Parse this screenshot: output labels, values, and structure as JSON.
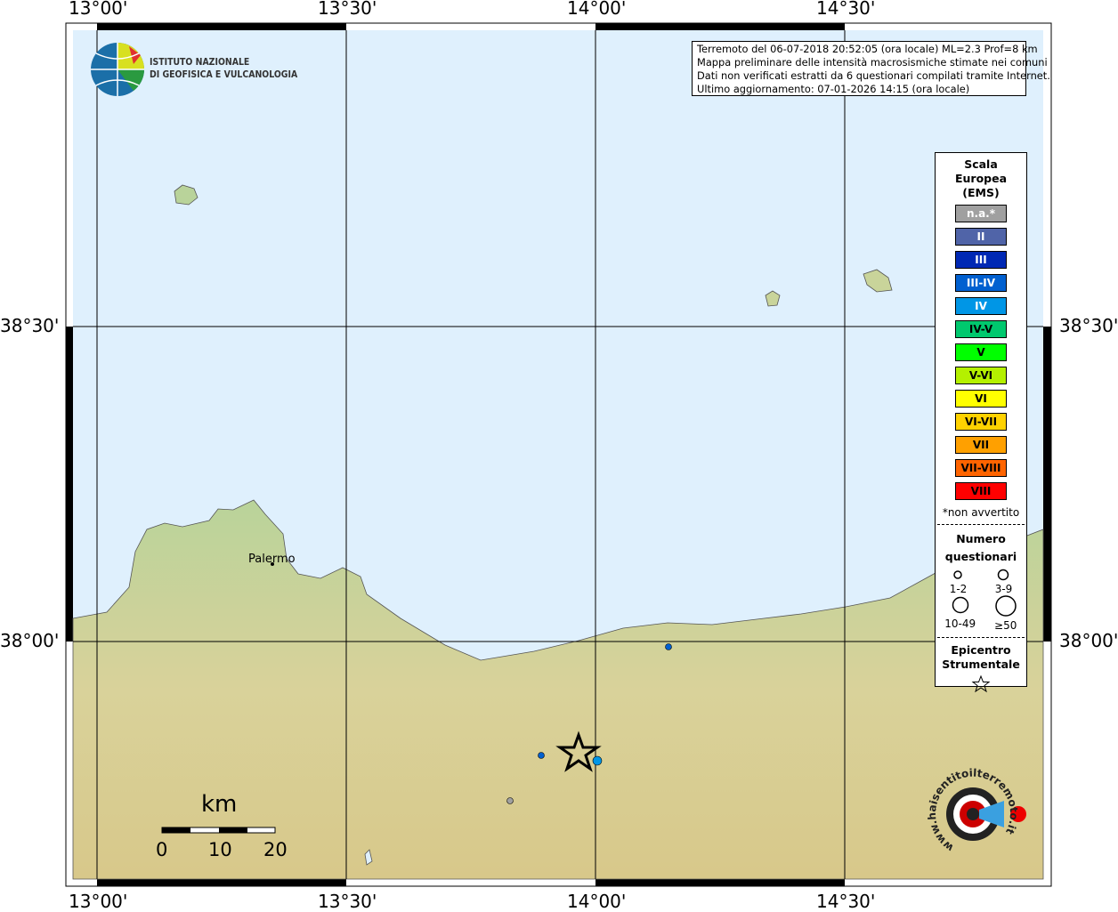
{
  "map": {
    "lon_ticks": [
      "13°00'",
      "13°30'",
      "14°00'",
      "14°30'"
    ],
    "lat_ticks": [
      "38°30'",
      "38°00'"
    ],
    "place_labels": [
      "Palermo"
    ],
    "colors": {
      "sea": "#dff0fd",
      "land": "#c9d49a",
      "grid": "#000000"
    }
  },
  "logo": {
    "line1": "ISTITUTO NAZIONALE",
    "line2": "DI GEOFISICA E VULCANOLOGIA"
  },
  "info": {
    "line1": "Terremoto del 06-07-2018 20:52:05 (ora locale) ML=2.3 Prof=8 km",
    "line2": "Mappa preliminare delle intensità macrosismiche stimate nei comuni",
    "line3": "Dati non verificati estratti da 6 questionari compilati tramite Internet.",
    "line4": "Ultimo aggiornamento: 07-01-2026 14:15 (ora locale)"
  },
  "legend": {
    "title1": "Scala",
    "title2": "Europea",
    "title3": "(EMS)",
    "items": [
      {
        "label": "n.a.*",
        "color": "#a0a0a0",
        "text": "#ffffff"
      },
      {
        "label": "II",
        "color": "#5064a8",
        "text": "#ffffff"
      },
      {
        "label": "III",
        "color": "#0028b4",
        "text": "#ffffff"
      },
      {
        "label": "III-IV",
        "color": "#0060d0",
        "text": "#ffffff"
      },
      {
        "label": "IV",
        "color": "#0096e6",
        "text": "#ffffff"
      },
      {
        "label": "IV-V",
        "color": "#00c86e",
        "text": "#000000"
      },
      {
        "label": "V",
        "color": "#00ff00",
        "text": "#000000"
      },
      {
        "label": "V-VI",
        "color": "#b4f000",
        "text": "#000000"
      },
      {
        "label": "VI",
        "color": "#ffff00",
        "text": "#000000"
      },
      {
        "label": "VI-VII",
        "color": "#ffd200",
        "text": "#000000"
      },
      {
        "label": "VII",
        "color": "#ffa000",
        "text": "#000000"
      },
      {
        "label": "VII-VIII",
        "color": "#ff6400",
        "text": "#000000"
      },
      {
        "label": "VIII",
        "color": "#ff0000",
        "text": "#000000"
      }
    ],
    "note": "*non avvertito",
    "count_title1": "Numero",
    "count_title2": "questionari",
    "counts": [
      "1-2",
      "3-9",
      "10-49",
      "≥50"
    ],
    "epi_title1": "Epicentro",
    "epi_title2": "Strumentale"
  },
  "scale_bar": {
    "unit": "km",
    "labels": [
      "0",
      "10",
      "20"
    ]
  },
  "observations": [
    {
      "intensity": "III-IV",
      "color": "#0060d0",
      "count": "1-2"
    },
    {
      "intensity": "IV",
      "color": "#0096e6",
      "count": "3-9"
    },
    {
      "intensity": "III-IV",
      "color": "#0060d0",
      "count": "1-2"
    },
    {
      "intensity": "n.a.*",
      "color": "#a0a0a0",
      "count": "1-2"
    }
  ],
  "watermark": {
    "text": "www.haisentitoilterremoto.it"
  }
}
